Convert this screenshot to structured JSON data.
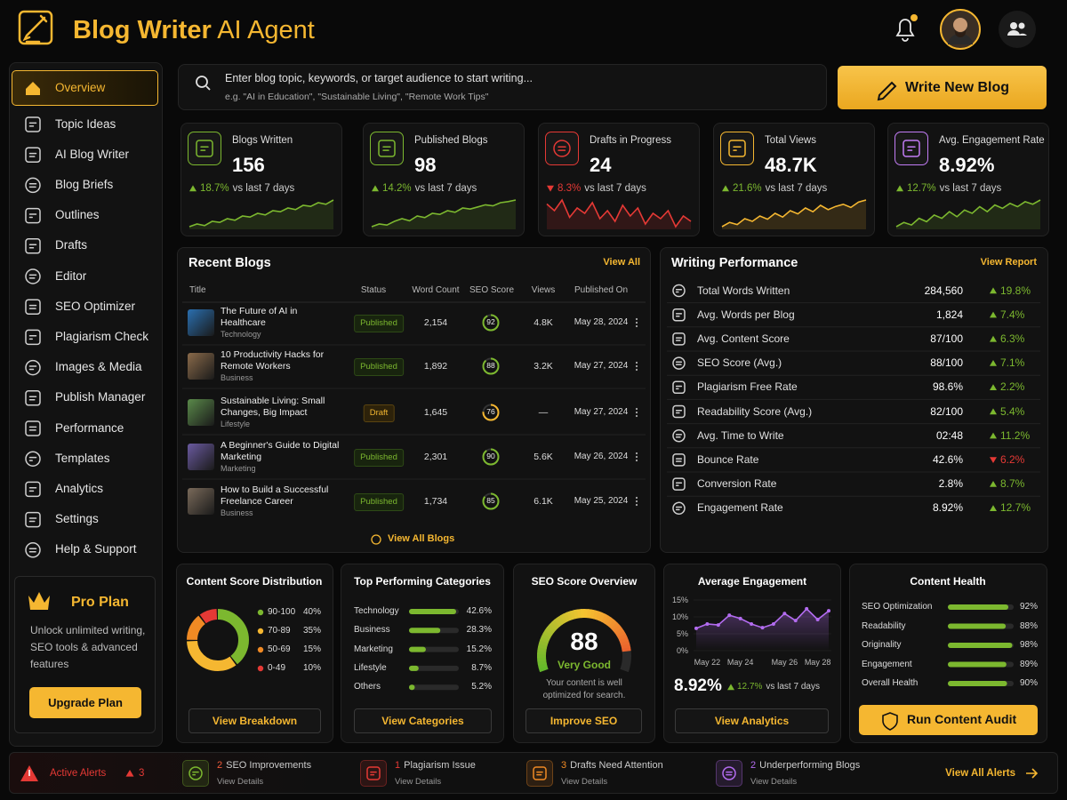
{
  "header": {
    "title_bold": "Blog Writer",
    "title_rest": "AI Agent"
  },
  "nav": [
    {
      "label": "Overview",
      "active": true
    },
    {
      "label": "Topic Ideas"
    },
    {
      "label": "AI Blog Writer"
    },
    {
      "label": "Blog Briefs"
    },
    {
      "label": "Outlines"
    },
    {
      "label": "Drafts"
    },
    {
      "label": "Editor"
    },
    {
      "label": "SEO Optimizer"
    },
    {
      "label": "Plagiarism Check"
    },
    {
      "label": "Images & Media"
    },
    {
      "label": "Publish Manager"
    },
    {
      "label": "Performance"
    },
    {
      "label": "Templates"
    },
    {
      "label": "Analytics"
    },
    {
      "label": "Settings"
    },
    {
      "label": "Help & Support"
    }
  ],
  "pro_plan": {
    "title": "Pro Plan",
    "text": "Unlock unlimited writing, SEO tools & advanced features",
    "button": "Upgrade Plan"
  },
  "search": {
    "placeholder": "Enter blog topic, keywords, or target audience to start writing...",
    "hint": "e.g. \"AI in Education\", \"Sustainable Living\", \"Remote Work Tips\""
  },
  "write_button": "Write New Blog",
  "stats": [
    {
      "label": "Blogs Written",
      "value": "156",
      "change": "18.7%",
      "direction": "up",
      "period": "vs last 7 days",
      "color": "#7cb82f",
      "icon_color": "#7cb82f",
      "trend": [
        20,
        25,
        22,
        30,
        28,
        35,
        32,
        40,
        38,
        45,
        42,
        50,
        48,
        55,
        52,
        60,
        58,
        65,
        62,
        70
      ]
    },
    {
      "label": "Published Blogs",
      "value": "98",
      "change": "14.2%",
      "direction": "up",
      "period": "vs last 7 days",
      "color": "#7cb82f",
      "icon_color": "#7cb82f",
      "trend": [
        25,
        30,
        28,
        35,
        40,
        36,
        45,
        42,
        50,
        48,
        55,
        52,
        60,
        58,
        62,
        66,
        64,
        70,
        72,
        75
      ]
    },
    {
      "label": "Drafts in Progress",
      "value": "24",
      "change": "8.3%",
      "direction": "down",
      "period": "vs last 7 days",
      "color": "#e53935",
      "icon_color": "#e53935",
      "trend": [
        55,
        50,
        58,
        45,
        52,
        48,
        56,
        44,
        50,
        42,
        54,
        46,
        52,
        40,
        48,
        44,
        50,
        38,
        46,
        42
      ]
    },
    {
      "label": "Total Views",
      "value": "48.7K",
      "change": "21.6%",
      "direction": "up",
      "period": "vs last 7 days",
      "color": "#f5b731",
      "icon_color": "#f5b731",
      "trend": [
        20,
        28,
        24,
        35,
        30,
        40,
        34,
        45,
        38,
        50,
        44,
        55,
        48,
        60,
        52,
        58,
        62,
        56,
        66,
        70
      ]
    },
    {
      "label": "Avg. Engagement Rate",
      "value": "8.92%",
      "change": "12.7%",
      "direction": "up",
      "period": "vs last 7 days",
      "color": "#7cb82f",
      "icon_color": "#c27cf5",
      "trend": [
        30,
        35,
        32,
        40,
        36,
        44,
        40,
        48,
        42,
        50,
        46,
        54,
        48,
        56,
        52,
        58,
        54,
        60,
        57,
        62
      ]
    }
  ],
  "recent_blogs": {
    "title": "Recent Blogs",
    "link": "View All",
    "columns": [
      "Title",
      "Status",
      "Word Count",
      "SEO Score",
      "Views",
      "Published On"
    ],
    "rows": [
      {
        "title": "The Future of AI in Healthcare",
        "category": "Technology",
        "status": "Published",
        "words": "2,154",
        "seo": 92,
        "views": "4.8K",
        "date": "May 28, 2024"
      },
      {
        "title": "10 Productivity Hacks for Remote Workers",
        "category": "Business",
        "status": "Published",
        "words": "1,892",
        "seo": 88,
        "views": "3.2K",
        "date": "May 27, 2024"
      },
      {
        "title": "Sustainable Living: Small Changes, Big Impact",
        "category": "Lifestyle",
        "status": "Draft",
        "words": "1,645",
        "seo": 76,
        "views": "—",
        "date": "May 27, 2024"
      },
      {
        "title": "A Beginner's Guide to Digital Marketing",
        "category": "Marketing",
        "status": "Published",
        "words": "2,301",
        "seo": 90,
        "views": "5.6K",
        "date": "May 26, 2024"
      },
      {
        "title": "How to Build a Successful Freelance Career",
        "category": "Business",
        "status": "Published",
        "words": "1,734",
        "seo": 85,
        "views": "6.1K",
        "date": "May 25, 2024"
      }
    ],
    "footer": "View All Blogs"
  },
  "writing_performance": {
    "title": "Writing Performance",
    "link": "View Report",
    "rows": [
      {
        "label": "Total Words Written",
        "value": "284,560",
        "change": "19.8%",
        "direction": "up"
      },
      {
        "label": "Avg. Words per Blog",
        "value": "1,824",
        "change": "7.4%",
        "direction": "up"
      },
      {
        "label": "Avg. Content Score",
        "value": "87/100",
        "change": "6.3%",
        "direction": "up"
      },
      {
        "label": "SEO Score (Avg.)",
        "value": "88/100",
        "change": "7.1%",
        "direction": "up"
      },
      {
        "label": "Plagiarism Free Rate",
        "value": "98.6%",
        "change": "2.2%",
        "direction": "up"
      },
      {
        "label": "Readability Score (Avg.)",
        "value": "82/100",
        "change": "5.4%",
        "direction": "up"
      },
      {
        "label": "Avg. Time to Write",
        "value": "02:48",
        "change": "11.2%",
        "direction": "up"
      },
      {
        "label": "Bounce Rate",
        "value": "42.6%",
        "change": "6.2%",
        "direction": "down"
      },
      {
        "label": "Conversion Rate",
        "value": "2.8%",
        "change": "8.7%",
        "direction": "up"
      },
      {
        "label": "Engagement Rate",
        "value": "8.92%",
        "change": "12.7%",
        "direction": "up"
      }
    ]
  },
  "content_score": {
    "type": "pie",
    "title": "Content Score Distribution",
    "categories": [
      "90-100",
      "70-89",
      "50-69",
      "0-49"
    ],
    "values": [
      40,
      35,
      15,
      10
    ],
    "value_labels": [
      "40%",
      "35%",
      "15%",
      "10%"
    ],
    "colors": [
      "#7cb82f",
      "#f5b731",
      "#f08a24",
      "#e53935"
    ],
    "button": "View Breakdown"
  },
  "top_categories": {
    "type": "bar",
    "title": "Top Performing Categories",
    "categories": [
      "Technology",
      "Business",
      "Marketing",
      "Lifestyle",
      "Others"
    ],
    "values": [
      42.6,
      28.3,
      15.2,
      8.7,
      5.2
    ],
    "value_labels": [
      "42.6%",
      "28.3%",
      "15.2%",
      "8.7%",
      "5.2%"
    ],
    "xlim": [
      0,
      45
    ],
    "color": "#7cb82f",
    "button": "View Categories"
  },
  "seo_overview": {
    "type": "gauge",
    "title": "SEO Score Overview",
    "score": 88,
    "range": [
      0,
      100
    ],
    "rating": "Very Good",
    "note": "Your content is well optimized for search.",
    "button": "Improve SEO"
  },
  "engagement": {
    "type": "line",
    "title": "Average Engagement",
    "categories": [
      null,
      "May 22",
      null,
      null,
      "May 24",
      null,
      null,
      null,
      "May 26",
      null,
      null,
      "May 28",
      null
    ],
    "values": [
      6.6,
      7.9,
      7.6,
      10.5,
      9.5,
      7.9,
      6.8,
      7.9,
      11,
      8.9,
      12.4,
      9.2,
      11.8
    ],
    "ylim": [
      0,
      15
    ],
    "yticks": [
      {
        "value": 0,
        "label": "0%"
      },
      {
        "value": 5,
        "label": "5%"
      },
      {
        "value": 10,
        "label": "10%"
      },
      {
        "value": 15,
        "label": "15%"
      }
    ],
    "color": "#b36cf0",
    "current": "8.92%",
    "change": "12.7%",
    "period": "vs last 7 days",
    "button": "View Analytics"
  },
  "content_health": {
    "type": "bar",
    "title": "Content Health",
    "categories": [
      "SEO Optimization",
      "Readability",
      "Originality",
      "Engagement",
      "Overall Health"
    ],
    "values": [
      92,
      88,
      98,
      89,
      90
    ],
    "value_labels": [
      "92%",
      "88%",
      "98%",
      "89%",
      "90%"
    ],
    "xlim": [
      0,
      100
    ],
    "color": "#7cb82f",
    "button": "Run Content Audit"
  },
  "alerts": {
    "title": "Active Alerts",
    "count": "3",
    "items": [
      {
        "count": "2",
        "text": "SEO Improvements",
        "sub": "View Details",
        "color": "#f05a3a",
        "icon_color": "#7cb82f"
      },
      {
        "count": "1",
        "text": "Plagiarism Issue",
        "sub": "View Details",
        "color": "#e53935",
        "icon_color": "#e53935"
      },
      {
        "count": "3",
        "text": "Drafts Need Attention",
        "sub": "View Details",
        "color": "#f08a24",
        "icon_color": "#f08a24"
      },
      {
        "count": "2",
        "text": "Underperforming Blogs",
        "sub": "View Details",
        "color": "#b36cf0",
        "icon_color": "#b36cf0"
      }
    ],
    "link": "View All Alerts"
  }
}
